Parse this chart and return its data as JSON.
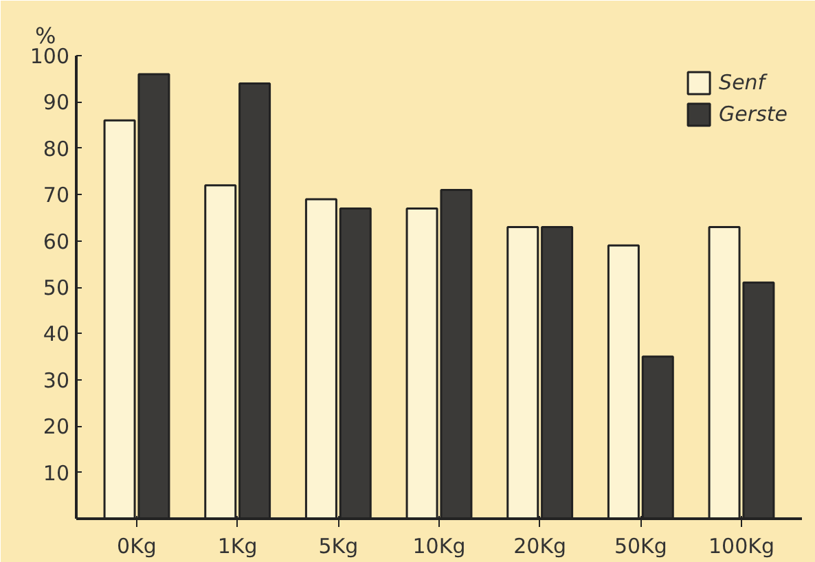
{
  "chart_data": {
    "type": "bar",
    "ylabel": "%",
    "categories": [
      "0Kg",
      "1Kg",
      "5Kg",
      "10Kg",
      "20Kg",
      "50Kg",
      "100Kg"
    ],
    "series": [
      {
        "name": "Senf",
        "color": "#fdf4d2",
        "values": [
          86,
          72,
          69,
          67,
          63,
          59,
          63
        ]
      },
      {
        "name": "Gerste",
        "color": "#3b3a38",
        "values": [
          96,
          94,
          67,
          71,
          63,
          35,
          51
        ]
      }
    ],
    "ylim": [
      0,
      100
    ],
    "yticks": [
      10,
      20,
      30,
      40,
      50,
      60,
      70,
      80,
      90,
      100
    ],
    "legend": "top right",
    "grid": false
  }
}
